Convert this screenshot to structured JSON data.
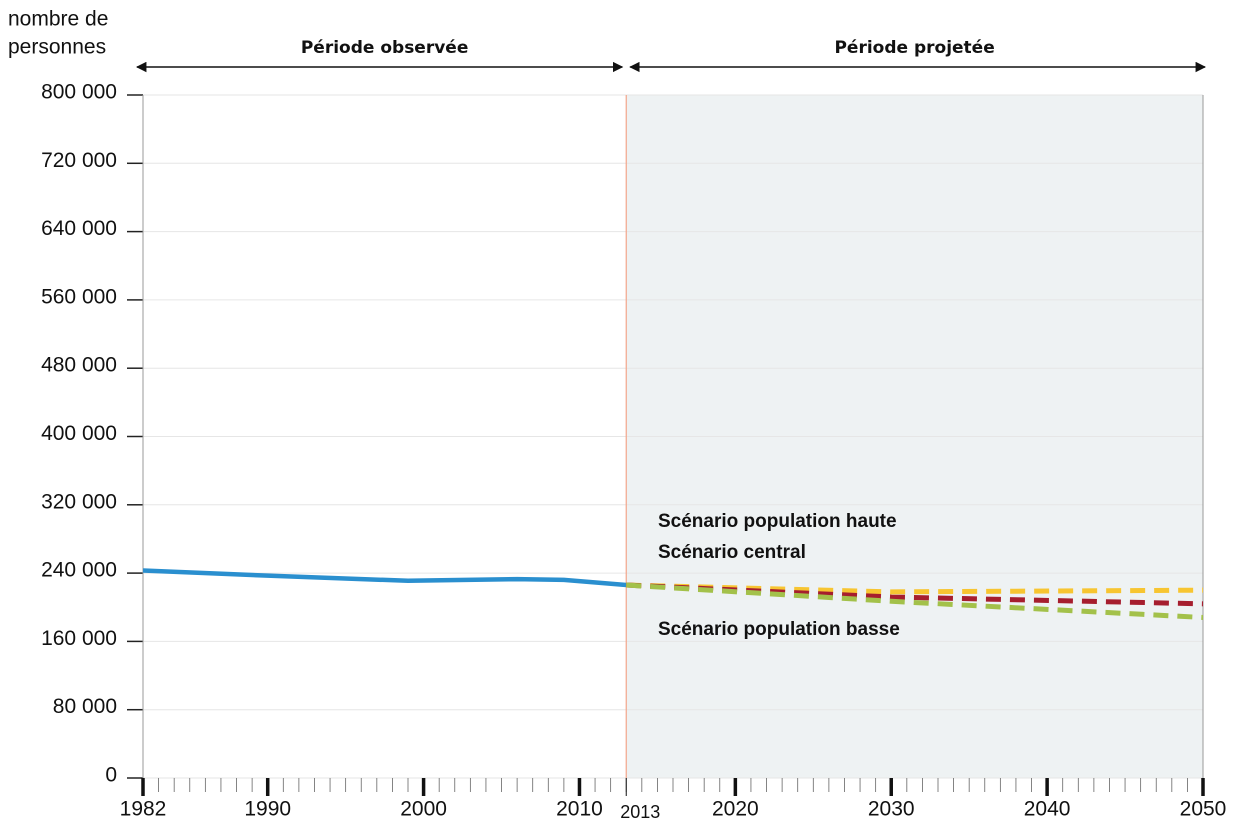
{
  "chart_data": {
    "type": "line",
    "y_label": [
      "nombre de",
      "personnes"
    ],
    "periods": [
      {
        "text": "Période observée",
        "from": 1982,
        "to": 2013
      },
      {
        "text": "Période projetée",
        "from": 2013,
        "to": 2050
      }
    ],
    "shade_color": "#eef2f3",
    "divider_color": "#f4a58a",
    "series": [
      {
        "color": "#2a8fcf",
        "dashed": false,
        "x": [
          1982,
          1990,
          1999,
          2006,
          2009,
          2013
        ],
        "values": [
          243000,
          237000,
          231000,
          233000,
          232000,
          226000
        ]
      },
      {
        "name": "Scénario population haute",
        "color": "#f7c531",
        "dashed": true,
        "x": [
          2013,
          2030,
          2050
        ],
        "values": [
          226000,
          218000,
          220000
        ]
      },
      {
        "name": "Scénario central",
        "color": "#a61e2e",
        "dashed": true,
        "x": [
          2013,
          2030,
          2050
        ],
        "values": [
          226000,
          212000,
          204000
        ]
      },
      {
        "name": "Scénario population basse",
        "color": "#a3c14a",
        "dashed": true,
        "x": [
          2013,
          2030,
          2050
        ],
        "values": [
          226000,
          207000,
          188000
        ]
      }
    ],
    "xlim": [
      1982,
      2050
    ],
    "xticks": [
      1982,
      1990,
      2000,
      2010,
      2013,
      2020,
      2030,
      2040,
      2050
    ],
    "highlight_tick": {
      "value": 2013,
      "color": "#e2462a"
    },
    "ylim": [
      0,
      800000
    ],
    "yticks": [
      0,
      {
        "value": 80000,
        "label": "80 000"
      },
      {
        "value": 160000,
        "label": "160 000"
      },
      {
        "value": 240000,
        "label": "240 000"
      },
      {
        "value": 320000,
        "label": "320 000"
      },
      {
        "value": 400000,
        "label": "400 000"
      },
      {
        "value": 480000,
        "label": "480 000"
      },
      {
        "value": 560000,
        "label": "560 000"
      },
      {
        "value": 640000,
        "label": "640 000"
      },
      {
        "value": 720000,
        "label": "720 000"
      },
      {
        "value": 800000,
        "label": "800 000"
      }
    ],
    "grid": true
  }
}
